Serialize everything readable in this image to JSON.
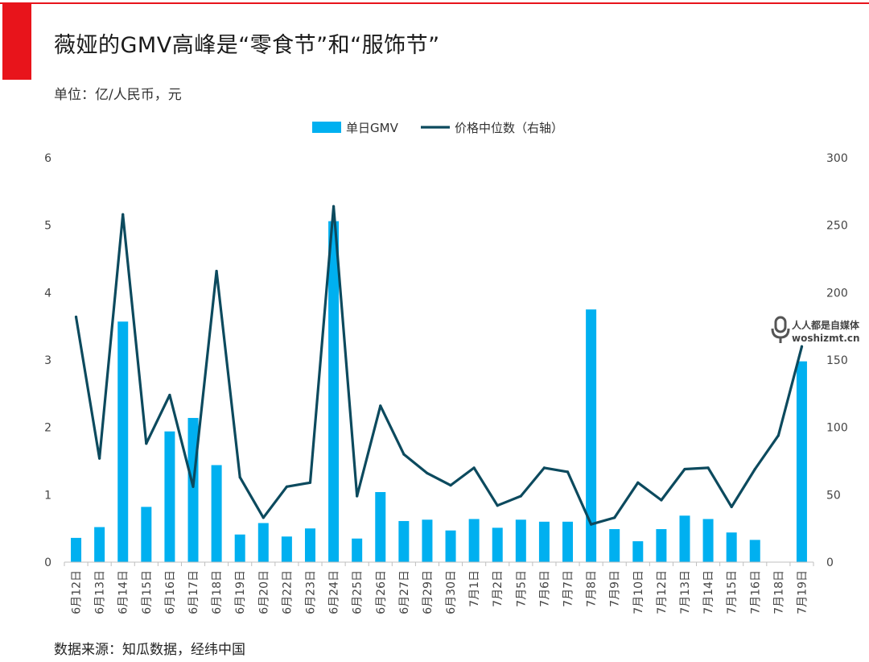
{
  "title": "薇娅的GMV高峰是“零食节”和“服饰节”",
  "unit_label": "单位：亿/人民币，元",
  "source": "数据来源：知瓜数据，经纬中国",
  "watermark": {
    "line1": "人人都是自媒体",
    "line2": "woshizmt.cn",
    "icon": "microphone-icon"
  },
  "colors": {
    "accent_red": "#e8141b",
    "bar": "#00b0f0",
    "line": "#0c4a5e"
  },
  "chart_data": {
    "type": "bar",
    "categories": [
      "6月12日",
      "6月13日",
      "6月14日",
      "6月15日",
      "6月16日",
      "6月17日",
      "6月18日",
      "6月19日",
      "6月20日",
      "6月22日",
      "6月23日",
      "6月24日",
      "6月25日",
      "6月26日",
      "6月27日",
      "6月29日",
      "6月30日",
      "7月1日",
      "7月2日",
      "7月5日",
      "7月6日",
      "7月7日",
      "7月8日",
      "7月9日",
      "7月10日",
      "7月12日",
      "7月13日",
      "7月14日",
      "7月15日",
      "7月16日",
      "7月18日",
      "7月19日"
    ],
    "series": [
      {
        "name": "单日GMV",
        "type": "bar",
        "axis": "left",
        "values": [
          0.36,
          0.52,
          3.57,
          0.82,
          1.94,
          2.14,
          1.44,
          0.41,
          0.58,
          0.38,
          0.5,
          5.06,
          0.35,
          1.04,
          0.61,
          0.63,
          0.47,
          0.64,
          0.51,
          0.63,
          0.6,
          0.6,
          3.75,
          0.49,
          0.31,
          0.49,
          0.69,
          0.64,
          0.44,
          0.33,
          0,
          2.98
        ]
      },
      {
        "name": "价格中位数（右轴）",
        "type": "line",
        "axis": "right",
        "values": [
          182,
          77,
          258,
          88,
          124,
          56,
          216,
          63,
          33,
          56,
          59,
          264,
          49,
          116,
          80,
          66,
          57,
          70,
          42,
          49,
          70,
          67,
          28,
          33,
          59,
          46,
          69,
          70,
          41,
          69,
          94,
          160
        ]
      }
    ],
    "y_left": {
      "min": 0,
      "max": 6,
      "ticks": [
        0,
        1,
        2,
        3,
        4,
        5,
        6
      ]
    },
    "y_right": {
      "min": 0,
      "max": 300,
      "ticks": [
        0,
        50,
        100,
        150,
        200,
        250,
        300
      ]
    },
    "legend_position": "top-center",
    "grid": false
  }
}
